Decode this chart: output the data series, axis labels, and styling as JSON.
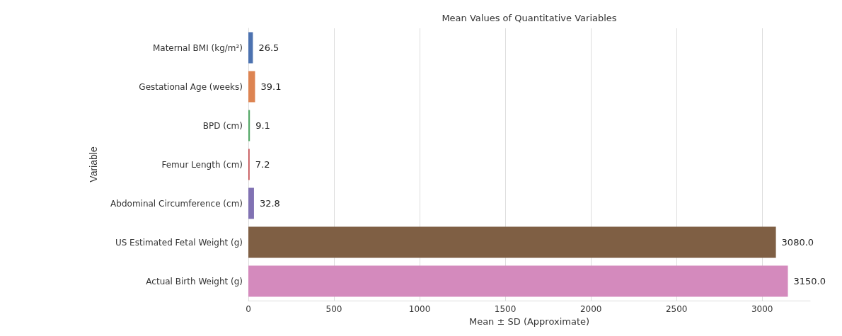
{
  "chart_data": {
    "type": "bar",
    "orientation": "horizontal",
    "title": "Mean Values of Quantitative Variables",
    "xlabel": "Mean ± SD (Approximate)",
    "ylabel": "Variable",
    "categories": [
      "Maternal BMI (kg/m²)",
      "Gestational Age (weeks)",
      "BPD (cm)",
      "Femur Length (cm)",
      "Abdominal Circumference (cm)",
      "US Estimated Fetal Weight (g)",
      "Actual Birth Weight (g)"
    ],
    "values": [
      26.5,
      39.1,
      9.1,
      7.2,
      32.8,
      3080,
      3150
    ],
    "colors": [
      "#4c72b0",
      "#dd8452",
      "#55a868",
      "#c44e52",
      "#8172b3",
      "#7f5f44",
      "#d48abd"
    ],
    "value_labels": [
      "26.5",
      "39.1",
      "9.1",
      "7.2",
      "32.8",
      "3080.0",
      "3150.0"
    ],
    "xlim": [
      0,
      3280
    ],
    "xticks": [
      0,
      500,
      1000,
      1500,
      2000,
      2500,
      3000
    ],
    "grid": "x"
  }
}
